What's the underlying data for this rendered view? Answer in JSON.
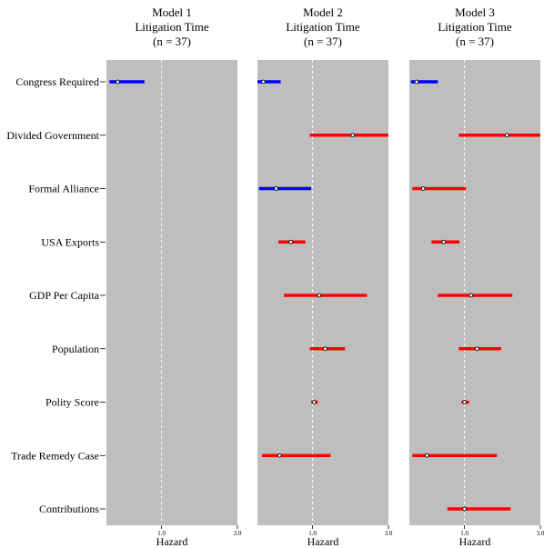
{
  "colors": {
    "panel_bg": "#bebebe",
    "reference_line": "#ffffff",
    "significant_negative": "#0000ff",
    "significant_positive": "#ff0000",
    "point_fill": "#ffffff",
    "point_stroke": "#000000"
  },
  "chart_data": [
    {
      "type": "forest",
      "title_lines": [
        "Model 1",
        "Litigation Time",
        "(n = 37)"
      ],
      "xlabel": "Hazard",
      "xticks": [
        "1.0",
        "3.0"
      ],
      "xscale": "log",
      "xlim": [
        0.45,
        3.0
      ],
      "reference_x": 1.0,
      "grid": false,
      "estimates": [
        {
          "variable": "Congress Required",
          "hazard": 0.53,
          "lower": 0.47,
          "upper": 0.78,
          "color": "blue"
        }
      ]
    },
    {
      "type": "forest",
      "title_lines": [
        "Model 2",
        "Litigation Time",
        "(n = 37)"
      ],
      "xlabel": "Hazard",
      "xticks": [
        "1.0",
        "3.0"
      ],
      "xscale": "log",
      "xlim": [
        0.45,
        3.0
      ],
      "reference_x": 1.0,
      "grid": false,
      "estimates": [
        {
          "variable": "Congress Required",
          "hazard": 0.49,
          "lower": 0.45,
          "upper": 0.63,
          "color": "blue"
        },
        {
          "variable": "Divided Government",
          "hazard": 1.79,
          "lower": 0.96,
          "upper": 3.0,
          "color": "red"
        },
        {
          "variable": "Formal Alliance",
          "hazard": 0.59,
          "lower": 0.46,
          "upper": 0.98,
          "color": "blue"
        },
        {
          "variable": "USA Exports",
          "hazard": 0.73,
          "lower": 0.61,
          "upper": 0.9,
          "color": "red"
        },
        {
          "variable": "GDP Per Capita",
          "hazard": 1.1,
          "lower": 0.66,
          "upper": 2.2,
          "color": "red"
        },
        {
          "variable": "Population",
          "hazard": 1.2,
          "lower": 0.96,
          "upper": 1.6,
          "color": "red"
        },
        {
          "variable": "Polity Score",
          "hazard": 1.02,
          "lower": 0.98,
          "upper": 1.08,
          "color": "red"
        },
        {
          "variable": "Trade Remedy Case",
          "hazard": 0.62,
          "lower": 0.48,
          "upper": 1.3,
          "color": "red"
        }
      ]
    },
    {
      "type": "forest",
      "title_lines": [
        "Model 3",
        "Litigation Time",
        "(n = 37)"
      ],
      "xlabel": "Hazard",
      "xticks": [
        "1.0",
        "3.0"
      ],
      "xscale": "log",
      "xlim": [
        0.45,
        3.0
      ],
      "reference_x": 1.0,
      "grid": false,
      "estimates": [
        {
          "variable": "Congress Required",
          "hazard": 0.5,
          "lower": 0.46,
          "upper": 0.68,
          "color": "blue"
        },
        {
          "variable": "Divided Government",
          "hazard": 1.85,
          "lower": 0.92,
          "upper": 3.0,
          "color": "red"
        },
        {
          "variable": "Formal Alliance",
          "hazard": 0.55,
          "lower": 0.47,
          "upper": 1.02,
          "color": "red"
        },
        {
          "variable": "USA Exports",
          "hazard": 0.74,
          "lower": 0.62,
          "upper": 0.93,
          "color": "red"
        },
        {
          "variable": "GDP Per Capita",
          "hazard": 1.1,
          "lower": 0.68,
          "upper": 2.0,
          "color": "red"
        },
        {
          "variable": "Population",
          "hazard": 1.2,
          "lower": 0.92,
          "upper": 1.7,
          "color": "red"
        },
        {
          "variable": "Polity Score",
          "hazard": 1.0,
          "lower": 0.96,
          "upper": 1.07,
          "color": "red"
        },
        {
          "variable": "Trade Remedy Case",
          "hazard": 0.58,
          "lower": 0.47,
          "upper": 1.6,
          "color": "red"
        },
        {
          "variable": "Contributions",
          "hazard": 1.0,
          "lower": 0.78,
          "upper": 1.95,
          "color": "red"
        }
      ]
    }
  ],
  "row_labels": [
    "Congress Required",
    "Divided Government",
    "Formal Alliance",
    "USA Exports",
    "GDP Per Capita",
    "Population",
    "Polity Score",
    "Trade Remedy Case",
    "Contributions"
  ]
}
